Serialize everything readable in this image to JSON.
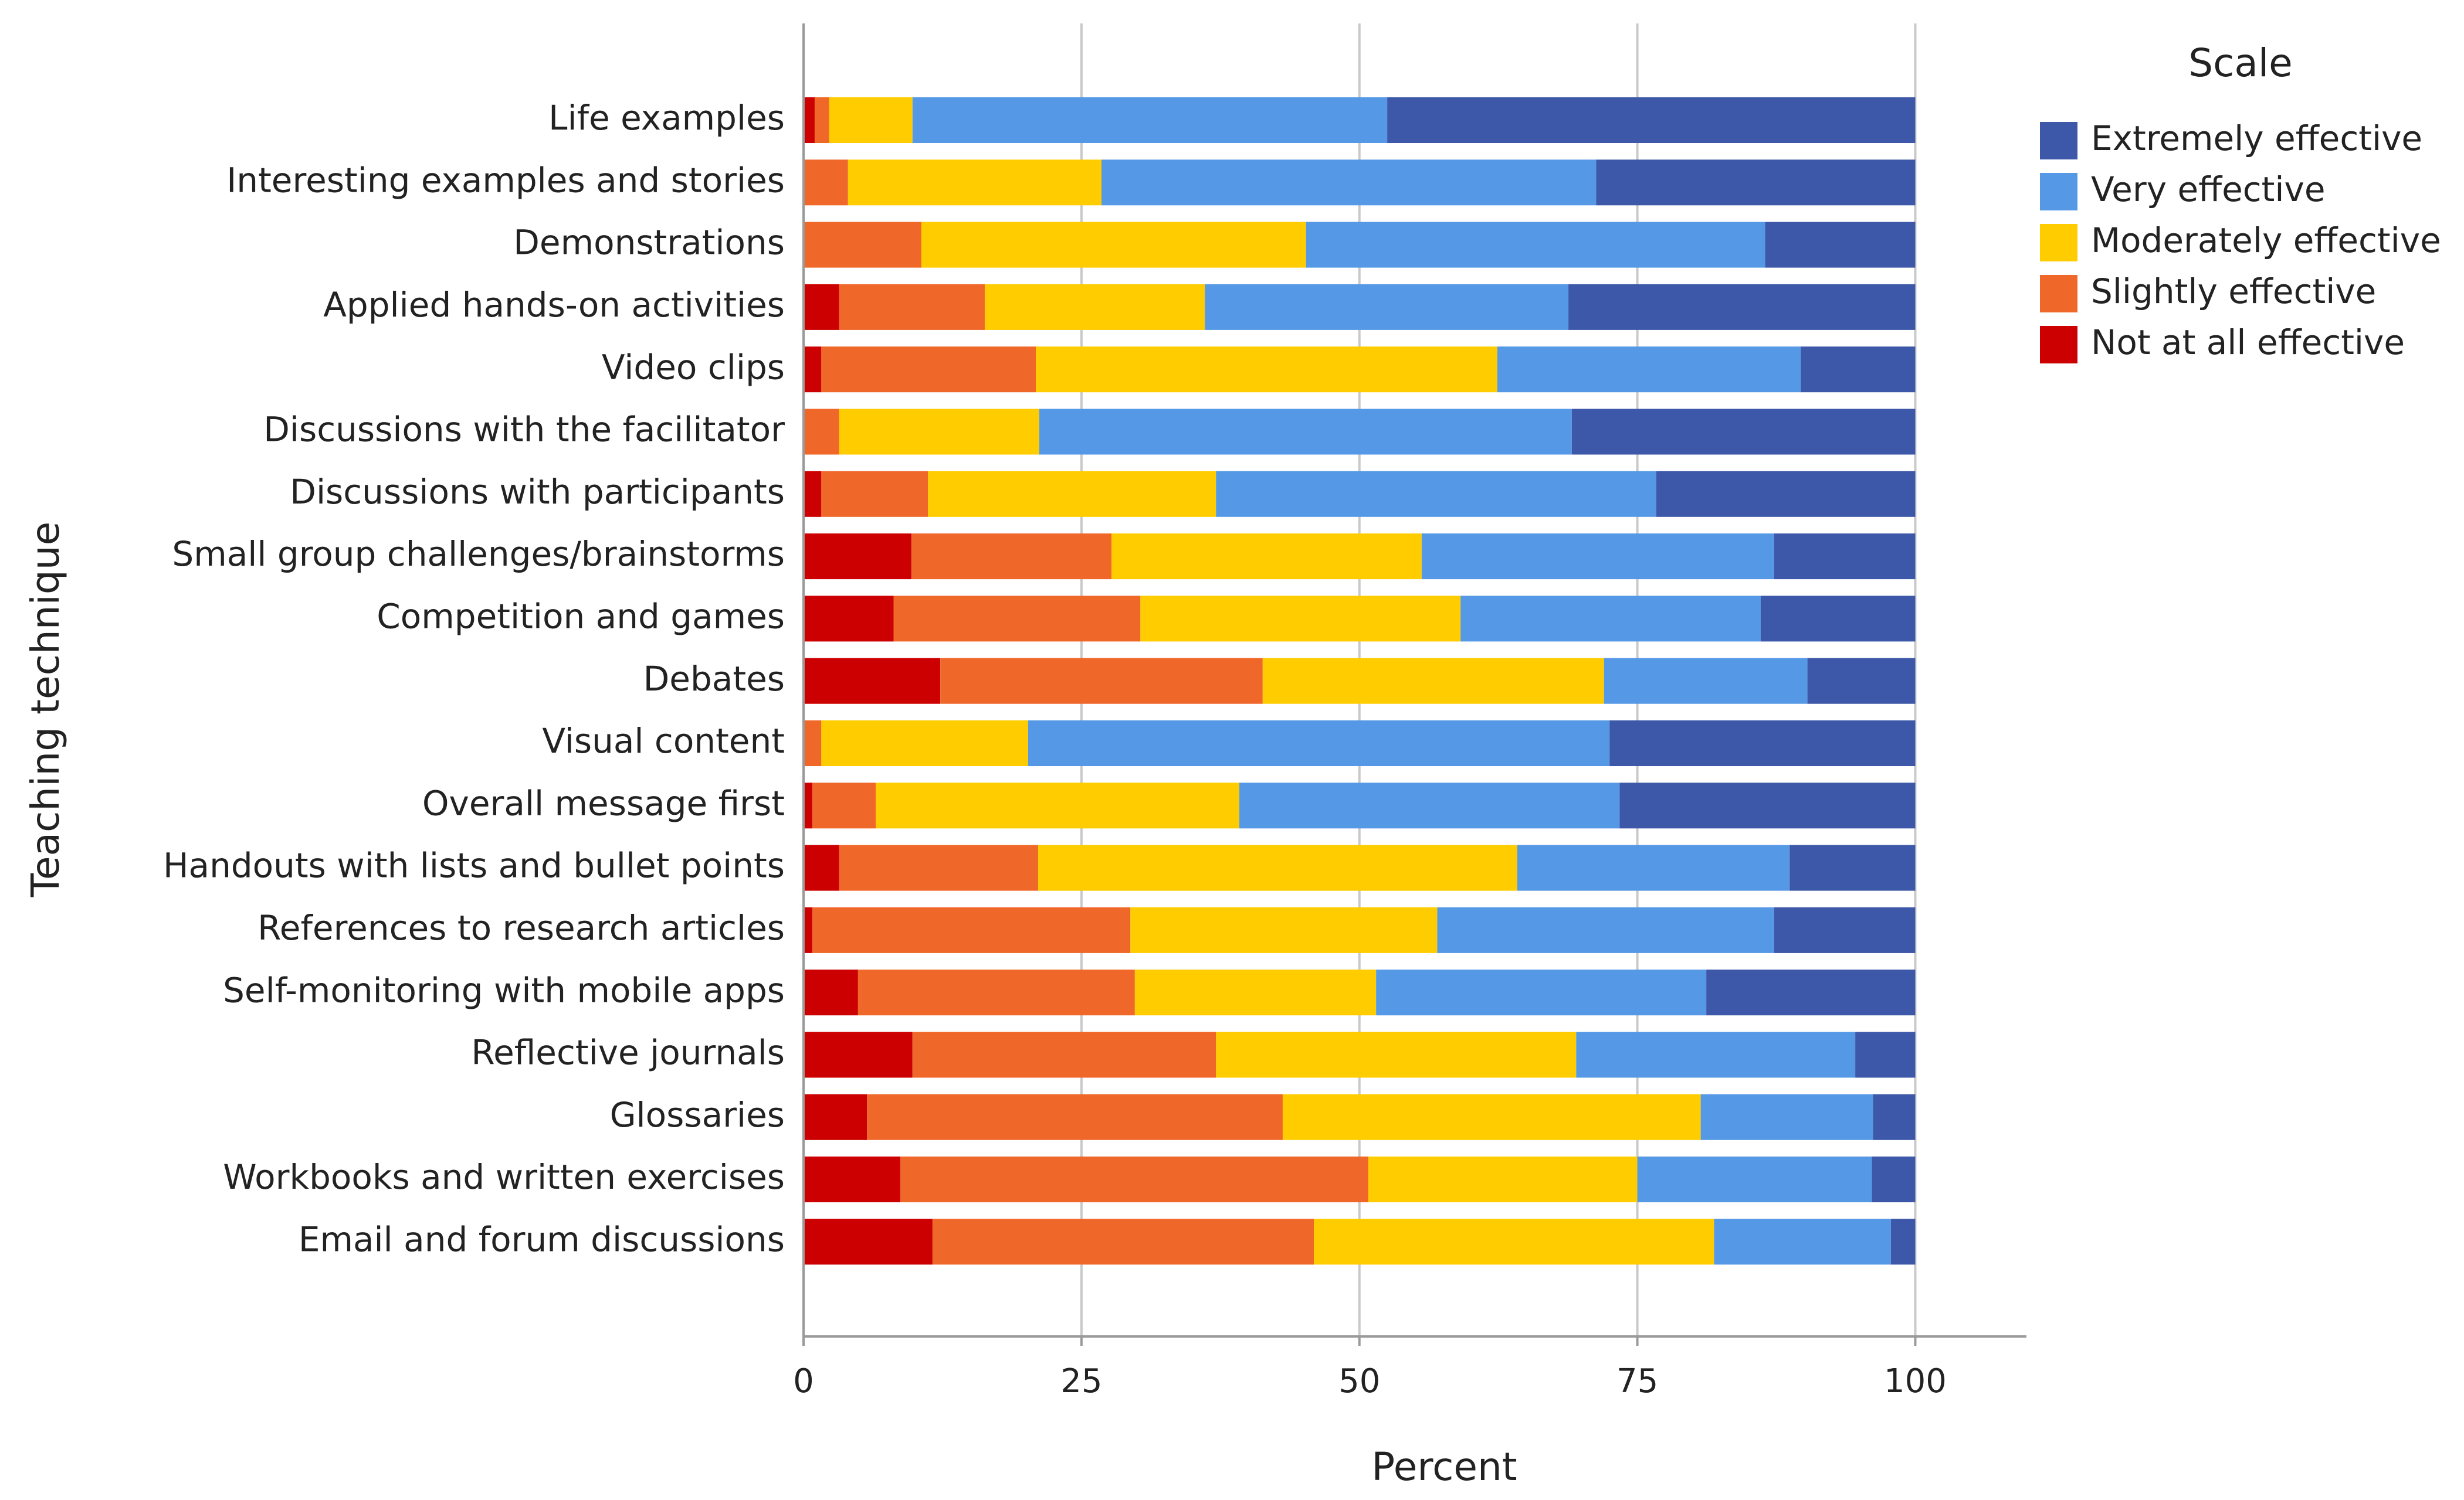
{
  "chart_data": {
    "type": "bar",
    "orientation": "horizontal",
    "stacked": true,
    "title": "",
    "xlabel": "Percent",
    "ylabel": "Teaching technique",
    "xlim": [
      0,
      110
    ],
    "xticks": [
      0,
      25,
      50,
      75,
      100
    ],
    "xtick_labels": [
      "0",
      "25",
      "50",
      "75",
      "100"
    ],
    "grid": "vertical at ticks",
    "legend": {
      "title": "Scale",
      "placement": "top-right",
      "order": [
        "Extremely effective",
        "Very effective",
        "Moderately effective",
        "Slightly effective",
        "Not at all effective"
      ]
    },
    "categories": [
      "Life examples",
      "Interesting examples and stories",
      "Demonstrations",
      "Applied hands-on activities",
      "Video clips",
      "Discussions with the facilitator",
      "Discussions with participants",
      "Small group challenges/brainstorms",
      "Competition and games",
      "Debates",
      "Visual content",
      "Overall message first",
      "Handouts with lists and bullet points",
      "References to research articles",
      "Self-monitoring with mobile apps",
      "Reflective journals",
      "Glossaries",
      "Workbooks and written exercises",
      "Email and forum discussions"
    ],
    "series": [
      {
        "name": "Not at all effective",
        "color": "#cc0000",
        "values": [
          1.0,
          0,
          0,
          3.2,
          1.6,
          0,
          1.6,
          9.7,
          8.1,
          12.3,
          0,
          0.8,
          3.2,
          0.8,
          4.9,
          9.8,
          5.7,
          8.7,
          11.6
        ]
      },
      {
        "name": "Slightly effective",
        "color": "#f0672a",
        "values": [
          1.3,
          4.0,
          10.6,
          13.1,
          19.3,
          3.2,
          9.6,
          18.0,
          22.2,
          29.0,
          1.6,
          5.7,
          17.9,
          28.6,
          24.9,
          27.3,
          37.4,
          42.1,
          34.3
        ]
      },
      {
        "name": "Moderately effective",
        "color": "#ffcc00",
        "values": [
          7.5,
          22.8,
          34.6,
          19.8,
          41.5,
          18.0,
          25.9,
          27.9,
          28.8,
          30.7,
          18.6,
          32.7,
          43.1,
          27.6,
          21.7,
          32.4,
          37.6,
          24.2,
          36.0
        ]
      },
      {
        "name": "Very effective",
        "color": "#5599e6",
        "values": [
          42.7,
          44.5,
          41.3,
          32.7,
          27.3,
          47.9,
          39.6,
          31.7,
          27.0,
          18.3,
          52.3,
          34.2,
          24.5,
          30.3,
          29.7,
          25.1,
          15.5,
          21.1,
          15.9
        ]
      },
      {
        "name": "Extremely effective",
        "color": "#3d58a8",
        "values": [
          47.5,
          28.7,
          13.5,
          31.2,
          10.3,
          30.9,
          23.3,
          12.7,
          13.9,
          9.7,
          27.5,
          26.6,
          11.3,
          12.7,
          18.8,
          5.4,
          3.8,
          3.9,
          2.2
        ]
      }
    ]
  }
}
